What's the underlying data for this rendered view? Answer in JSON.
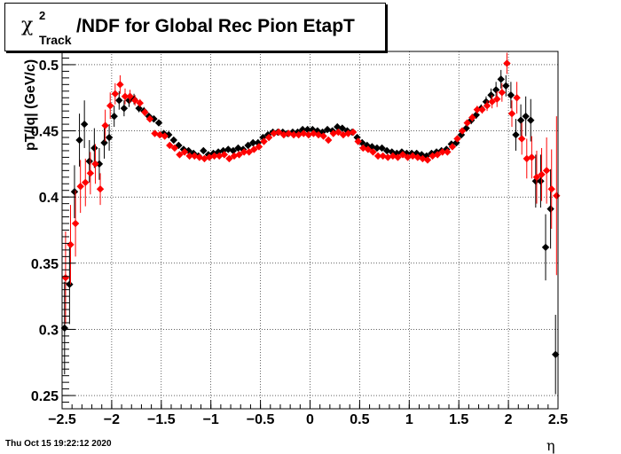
{
  "title": {
    "symbol": "χ",
    "superscript": "2",
    "subscript": "Track",
    "text": "/NDF for Global Rec Pion EtapT"
  },
  "timestamp": "Thu Oct 15 19:22:12 2020",
  "colors": {
    "series_black": "#000000",
    "series_red": "#ff0000",
    "grid": "#000000"
  },
  "chart_data": {
    "type": "scatter",
    "title": "χ²_Track/NDF for Global Rec Pion EtapT",
    "xlabel": "η",
    "ylabel": "pT/|q| (GeV/c)",
    "xlim": [
      -2.5,
      2.5
    ],
    "ylim": [
      0.24,
      0.51
    ],
    "grid": true,
    "x_ticks": [
      -2.5,
      -2,
      -1.5,
      -1,
      -0.5,
      0,
      0.5,
      1,
      1.5,
      2,
      2.5
    ],
    "x_tick_labels": [
      "−2.5",
      "−2",
      "−1.5",
      "−1",
      "−0.5",
      "0",
      "0.5",
      "1",
      "1.5",
      "2",
      "2.5"
    ],
    "y_ticks": [
      0.25,
      0.3,
      0.35,
      0.4,
      0.45,
      0.5
    ],
    "y_tick_labels": [
      "0.25",
      "0.3",
      "0.35",
      "0.4",
      "0.45",
      "0.5"
    ],
    "series": [
      {
        "color": "#000000",
        "points": [
          [
            -2.475,
            0.301,
            0.035
          ],
          [
            -2.425,
            0.334,
            0.03
          ],
          [
            -2.375,
            0.404,
            0.02
          ],
          [
            -2.325,
            0.443,
            0.02
          ],
          [
            -2.275,
            0.455,
            0.018
          ],
          [
            -2.225,
            0.427,
            0.016
          ],
          [
            -2.175,
            0.437,
            0.015
          ],
          [
            -2.125,
            0.425,
            0.012
          ],
          [
            -2.075,
            0.441,
            0.012
          ],
          [
            -2.025,
            0.445,
            0.01
          ],
          [
            -1.975,
            0.461,
            0.008
          ],
          [
            -1.925,
            0.473,
            0.007
          ],
          [
            -1.875,
            0.467,
            0.006
          ],
          [
            -1.825,
            0.473,
            0.005
          ],
          [
            -1.775,
            0.474,
            0.004
          ],
          [
            -1.725,
            0.467,
            0.003
          ],
          [
            -1.675,
            0.465,
            0.003
          ],
          [
            -1.625,
            0.461,
            0.002
          ],
          [
            -1.575,
            0.459,
            0.002
          ],
          [
            -1.525,
            0.456,
            0.002
          ],
          [
            -1.475,
            0.448,
            0.002
          ],
          [
            -1.425,
            0.447,
            0.002
          ],
          [
            -1.375,
            0.443,
            0.002
          ],
          [
            -1.325,
            0.439,
            0.002
          ],
          [
            -1.275,
            0.436,
            0.002
          ],
          [
            -1.225,
            0.435,
            0.002
          ],
          [
            -1.175,
            0.433,
            0.002
          ],
          [
            -1.125,
            0.431,
            0.002
          ],
          [
            -1.075,
            0.435,
            0.002
          ],
          [
            -1.025,
            0.432,
            0.002
          ],
          [
            -0.975,
            0.433,
            0.002
          ],
          [
            -0.925,
            0.434,
            0.002
          ],
          [
            -0.875,
            0.435,
            0.002
          ],
          [
            -0.825,
            0.436,
            0.002
          ],
          [
            -0.775,
            0.435,
            0.002
          ],
          [
            -0.725,
            0.437,
            0.002
          ],
          [
            -0.675,
            0.436,
            0.002
          ],
          [
            -0.625,
            0.439,
            0.002
          ],
          [
            -0.575,
            0.441,
            0.002
          ],
          [
            -0.525,
            0.441,
            0.002
          ],
          [
            -0.475,
            0.445,
            0.002
          ],
          [
            -0.425,
            0.447,
            0.002
          ],
          [
            -0.375,
            0.449,
            0.002
          ],
          [
            -0.325,
            0.449,
            0.002
          ],
          [
            -0.275,
            0.449,
            0.002
          ],
          [
            -0.225,
            0.448,
            0.002
          ],
          [
            -0.175,
            0.449,
            0.002
          ],
          [
            -0.125,
            0.449,
            0.002
          ],
          [
            -0.075,
            0.451,
            0.002
          ],
          [
            -0.025,
            0.451,
            0.002
          ],
          [
            0.025,
            0.451,
            0.002
          ],
          [
            0.075,
            0.45,
            0.002
          ],
          [
            0.125,
            0.449,
            0.002
          ],
          [
            0.175,
            0.451,
            0.002
          ],
          [
            0.225,
            0.45,
            0.002
          ],
          [
            0.275,
            0.453,
            0.002
          ],
          [
            0.325,
            0.452,
            0.002
          ],
          [
            0.375,
            0.45,
            0.002
          ],
          [
            0.425,
            0.449,
            0.002
          ],
          [
            0.475,
            0.445,
            0.002
          ],
          [
            0.525,
            0.441,
            0.002
          ],
          [
            0.575,
            0.439,
            0.002
          ],
          [
            0.625,
            0.438,
            0.002
          ],
          [
            0.675,
            0.437,
            0.002
          ],
          [
            0.725,
            0.437,
            0.002
          ],
          [
            0.775,
            0.435,
            0.002
          ],
          [
            0.825,
            0.434,
            0.002
          ],
          [
            0.875,
            0.433,
            0.002
          ],
          [
            0.925,
            0.434,
            0.002
          ],
          [
            0.975,
            0.433,
            0.002
          ],
          [
            1.025,
            0.433,
            0.002
          ],
          [
            1.075,
            0.433,
            0.002
          ],
          [
            1.125,
            0.432,
            0.002
          ],
          [
            1.175,
            0.431,
            0.002
          ],
          [
            1.225,
            0.433,
            0.002
          ],
          [
            1.275,
            0.434,
            0.002
          ],
          [
            1.325,
            0.435,
            0.002
          ],
          [
            1.375,
            0.436,
            0.002
          ],
          [
            1.425,
            0.44,
            0.002
          ],
          [
            1.475,
            0.441,
            0.002
          ],
          [
            1.525,
            0.447,
            0.002
          ],
          [
            1.575,
            0.452,
            0.002
          ],
          [
            1.625,
            0.458,
            0.003
          ],
          [
            1.675,
            0.462,
            0.003
          ],
          [
            1.725,
            0.467,
            0.003
          ],
          [
            1.775,
            0.472,
            0.004
          ],
          [
            1.825,
            0.477,
            0.005
          ],
          [
            1.875,
            0.481,
            0.006
          ],
          [
            1.925,
            0.489,
            0.007
          ],
          [
            1.975,
            0.484,
            0.008
          ],
          [
            2.025,
            0.477,
            0.01
          ],
          [
            2.075,
            0.447,
            0.012
          ],
          [
            2.125,
            0.458,
            0.012
          ],
          [
            2.175,
            0.461,
            0.015
          ],
          [
            2.225,
            0.458,
            0.016
          ],
          [
            2.275,
            0.412,
            0.02
          ],
          [
            2.325,
            0.412,
            0.02
          ],
          [
            2.375,
            0.362,
            0.025
          ],
          [
            2.425,
            0.391,
            0.03
          ],
          [
            2.475,
            0.281,
            0.03
          ]
        ]
      },
      {
        "color": "#ff0000",
        "points": [
          [
            -2.465,
            0.339,
            0.035
          ],
          [
            -2.415,
            0.364,
            0.03
          ],
          [
            -2.365,
            0.38,
            0.025
          ],
          [
            -2.315,
            0.408,
            0.02
          ],
          [
            -2.265,
            0.411,
            0.018
          ],
          [
            -2.215,
            0.418,
            0.016
          ],
          [
            -2.165,
            0.425,
            0.015
          ],
          [
            -2.115,
            0.406,
            0.012
          ],
          [
            -2.065,
            0.454,
            0.012
          ],
          [
            -2.015,
            0.469,
            0.01
          ],
          [
            -1.965,
            0.478,
            0.008
          ],
          [
            -1.915,
            0.485,
            0.007
          ],
          [
            -1.865,
            0.476,
            0.006
          ],
          [
            -1.815,
            0.476,
            0.005
          ],
          [
            -1.765,
            0.473,
            0.004
          ],
          [
            -1.715,
            0.471,
            0.003
          ],
          [
            -1.665,
            0.464,
            0.003
          ],
          [
            -1.615,
            0.459,
            0.002
          ],
          [
            -1.565,
            0.448,
            0.002
          ],
          [
            -1.515,
            0.447,
            0.002
          ],
          [
            -1.465,
            0.446,
            0.002
          ],
          [
            -1.415,
            0.439,
            0.002
          ],
          [
            -1.365,
            0.437,
            0.002
          ],
          [
            -1.315,
            0.432,
            0.002
          ],
          [
            -1.265,
            0.434,
            0.002
          ],
          [
            -1.215,
            0.431,
            0.002
          ],
          [
            -1.165,
            0.431,
            0.002
          ],
          [
            -1.115,
            0.43,
            0.002
          ],
          [
            -1.065,
            0.429,
            0.002
          ],
          [
            -1.015,
            0.43,
            0.002
          ],
          [
            -0.965,
            0.431,
            0.002
          ],
          [
            -0.915,
            0.431,
            0.002
          ],
          [
            -0.865,
            0.432,
            0.002
          ],
          [
            -0.815,
            0.429,
            0.002
          ],
          [
            -0.765,
            0.431,
            0.002
          ],
          [
            -0.715,
            0.432,
            0.002
          ],
          [
            -0.665,
            0.434,
            0.002
          ],
          [
            -0.615,
            0.434,
            0.002
          ],
          [
            -0.565,
            0.436,
            0.002
          ],
          [
            -0.515,
            0.438,
            0.002
          ],
          [
            -0.465,
            0.442,
            0.002
          ],
          [
            -0.415,
            0.445,
            0.002
          ],
          [
            -0.365,
            0.448,
            0.002
          ],
          [
            -0.315,
            0.449,
            0.002
          ],
          [
            -0.265,
            0.447,
            0.002
          ],
          [
            -0.215,
            0.448,
            0.002
          ],
          [
            -0.165,
            0.447,
            0.002
          ],
          [
            -0.115,
            0.447,
            0.002
          ],
          [
            -0.065,
            0.448,
            0.002
          ],
          [
            -0.015,
            0.447,
            0.002
          ],
          [
            0.035,
            0.448,
            0.002
          ],
          [
            0.085,
            0.447,
            0.002
          ],
          [
            0.135,
            0.446,
            0.002
          ],
          [
            0.185,
            0.443,
            0.002
          ],
          [
            0.235,
            0.448,
            0.002
          ],
          [
            0.285,
            0.449,
            0.002
          ],
          [
            0.335,
            0.447,
            0.002
          ],
          [
            0.385,
            0.448,
            0.002
          ],
          [
            0.435,
            0.449,
            0.002
          ],
          [
            0.485,
            0.442,
            0.002
          ],
          [
            0.535,
            0.437,
            0.002
          ],
          [
            0.585,
            0.436,
            0.002
          ],
          [
            0.635,
            0.434,
            0.002
          ],
          [
            0.685,
            0.431,
            0.002
          ],
          [
            0.735,
            0.431,
            0.002
          ],
          [
            0.785,
            0.43,
            0.002
          ],
          [
            0.835,
            0.431,
            0.002
          ],
          [
            0.885,
            0.43,
            0.002
          ],
          [
            0.935,
            0.432,
            0.002
          ],
          [
            0.985,
            0.43,
            0.002
          ],
          [
            1.035,
            0.431,
            0.002
          ],
          [
            1.085,
            0.43,
            0.002
          ],
          [
            1.135,
            0.429,
            0.002
          ],
          [
            1.185,
            0.428,
            0.002
          ],
          [
            1.235,
            0.431,
            0.002
          ],
          [
            1.285,
            0.432,
            0.002
          ],
          [
            1.335,
            0.434,
            0.002
          ],
          [
            1.385,
            0.434,
            0.002
          ],
          [
            1.435,
            0.438,
            0.002
          ],
          [
            1.485,
            0.444,
            0.002
          ],
          [
            1.535,
            0.45,
            0.002
          ],
          [
            1.585,
            0.456,
            0.002
          ],
          [
            1.635,
            0.46,
            0.003
          ],
          [
            1.685,
            0.466,
            0.003
          ],
          [
            1.735,
            0.466,
            0.003
          ],
          [
            1.785,
            0.469,
            0.004
          ],
          [
            1.835,
            0.472,
            0.005
          ],
          [
            1.885,
            0.474,
            0.006
          ],
          [
            1.935,
            0.479,
            0.007
          ],
          [
            1.985,
            0.501,
            0.008
          ],
          [
            2.035,
            0.463,
            0.01
          ],
          [
            2.085,
            0.475,
            0.012
          ],
          [
            2.135,
            0.444,
            0.012
          ],
          [
            2.185,
            0.429,
            0.015
          ],
          [
            2.235,
            0.43,
            0.016
          ],
          [
            2.285,
            0.415,
            0.02
          ],
          [
            2.335,
            0.417,
            0.02
          ],
          [
            2.385,
            0.42,
            0.025
          ],
          [
            2.435,
            0.406,
            0.03
          ],
          [
            2.485,
            0.401,
            0.06
          ]
        ]
      }
    ]
  }
}
